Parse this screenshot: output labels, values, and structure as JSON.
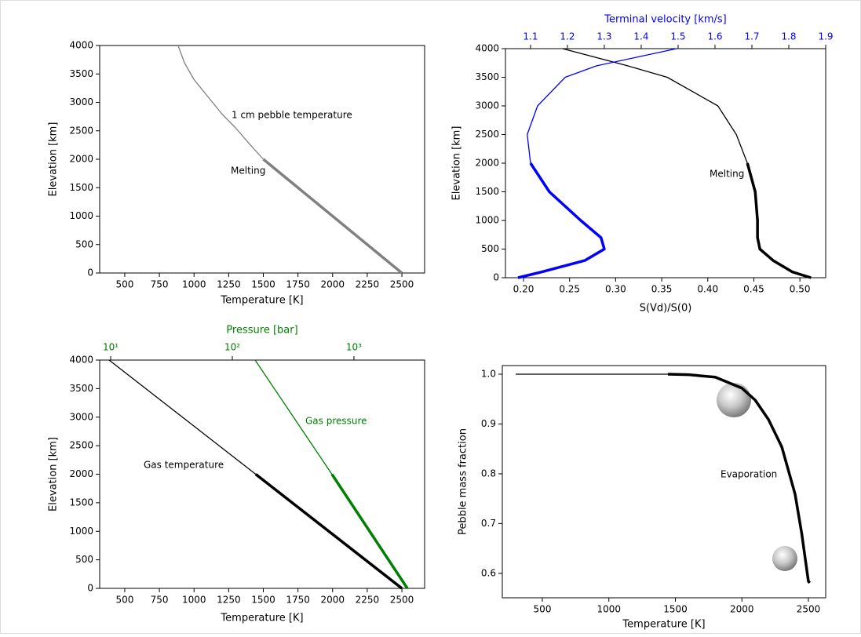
{
  "chart_data": [
    {
      "type": "line",
      "xlabel": "Temperature [K]",
      "ylabel": "Elevation [km]",
      "xlim": [
        319,
        2664
      ],
      "xticks": [
        500,
        750,
        1000,
        1250,
        1500,
        1750,
        2000,
        2250,
        2500
      ],
      "ylim": [
        0,
        4000
      ],
      "yticks": [
        0,
        500,
        1000,
        1500,
        2000,
        2500,
        3000,
        3500,
        4000
      ],
      "series": [
        {
          "color": "#808080",
          "linewidth": 1.3,
          "x": [
            885,
            930,
            1000,
            1100,
            1200,
            1300,
            1400,
            1500
          ],
          "y": [
            4000,
            3700,
            3400,
            3100,
            2800,
            2550,
            2270,
            2000
          ]
        },
        {
          "color": "#808080",
          "linewidth": 3.5,
          "x": [
            1500,
            2500
          ],
          "y": [
            2000,
            0
          ]
        }
      ],
      "annotations": [
        {
          "text": "1 cm pebble temperature",
          "color": "#000000"
        },
        {
          "text": "Melting",
          "color": "#000000"
        }
      ]
    },
    {
      "type": "line",
      "xlabel": "S(Vd)/S(0)",
      "ylabel": "Elevation [km]",
      "xlim": [
        0.1804,
        0.528
      ],
      "xticks": [
        {
          "value": 0.2,
          "label": "0.20"
        },
        0.25,
        {
          "value": 0.3,
          "label": "0.30"
        },
        0.35,
        {
          "value": 0.4,
          "label": "0.40"
        },
        0.45,
        {
          "value": 0.5,
          "label": "0.50"
        }
      ],
      "x2label": "Terminal velocity [km/s]",
      "x2color": "#0000ff",
      "x2lim": [
        1.032,
        1.9
      ],
      "x2ticks": [
        1.1,
        1.2,
        1.3,
        1.4,
        1.5,
        1.6,
        1.7,
        1.8,
        1.9
      ],
      "ylim": [
        0,
        4000
      ],
      "yticks": [
        0,
        500,
        1000,
        1500,
        2000,
        2500,
        3000,
        3500,
        4000
      ],
      "series": [
        {
          "color": "#000000",
          "linewidth": 1.3,
          "x": [
            0.2424,
            0.313,
            0.356,
            0.411,
            0.431,
            0.443
          ],
          "y": [
            4000,
            3700,
            3500,
            3000,
            2500,
            2000
          ]
        },
        {
          "color": "#000000",
          "linewidth": 3.5,
          "x": [
            0.443,
            0.4515,
            0.454,
            0.454,
            0.4566,
            0.471,
            0.492,
            0.512
          ],
          "y": [
            2000,
            1500,
            1000,
            700,
            500,
            300,
            100,
            0
          ]
        },
        {
          "color": "#0000ff",
          "linewidth": 1.3,
          "axis": "x2",
          "x": [
            1.496,
            1.279,
            1.194,
            1.119,
            1.091,
            1.1
          ],
          "y": [
            4000,
            3700,
            3500,
            3000,
            2500,
            2000
          ]
        },
        {
          "color": "#0000ff",
          "linewidth": 3.5,
          "axis": "x2",
          "x": [
            1.1,
            1.151,
            1.236,
            1.291,
            1.3,
            1.247,
            1.13,
            1.066
          ],
          "y": [
            2000,
            1500,
            1000,
            700,
            500,
            300,
            100,
            0
          ]
        }
      ],
      "annotations": [
        {
          "text": "Melting",
          "color": "#000000"
        }
      ]
    },
    {
      "type": "line",
      "xlabel": "Temperature [K]",
      "ylabel": "Elevation [km]",
      "xlim": [
        319,
        2664
      ],
      "xticks": [
        500,
        750,
        1000,
        1250,
        1500,
        1750,
        2000,
        2250,
        2500
      ],
      "x2label": "Pressure [bar]",
      "x2color": "#008000",
      "x2scale": "log",
      "x2lim": [
        8.12,
        3811
      ],
      "x2ticks": [
        {
          "value": 10,
          "label": "10¹"
        },
        {
          "value": 100,
          "label": "10²"
        },
        {
          "value": 1000,
          "label": "10³"
        }
      ],
      "ylim": [
        0,
        4000
      ],
      "yticks": [
        0,
        500,
        1000,
        1500,
        2000,
        2500,
        3000,
        3500,
        4000
      ],
      "series": [
        {
          "color": "#000000",
          "linewidth": 1.3,
          "x": [
            387,
            1445
          ],
          "y": [
            4000,
            2000
          ]
        },
        {
          "color": "#000000",
          "linewidth": 3.5,
          "x": [
            1445,
            2500
          ],
          "y": [
            2000,
            0
          ]
        },
        {
          "color": "#008000",
          "linewidth": 1.3,
          "axis": "x2",
          "x": [
            154,
            659
          ],
          "y": [
            4000,
            2000
          ]
        },
        {
          "color": "#008000",
          "linewidth": 3.5,
          "axis": "x2",
          "x": [
            659,
            2750
          ],
          "y": [
            2000,
            0
          ]
        }
      ],
      "annotations": [
        {
          "text": "Gas temperature",
          "color": "#000000"
        },
        {
          "text": "Gas pressure",
          "color": "#008000"
        }
      ]
    },
    {
      "type": "line",
      "xlabel": "Temperature [K]",
      "ylabel": "Pebble mass fraction",
      "xlim": [
        199,
        2630
      ],
      "xticks": [
        500,
        1000,
        1500,
        2000,
        2500
      ],
      "ylim": [
        0.551,
        1.0173
      ],
      "yticks": [
        0.6,
        0.7,
        0.8,
        0.9,
        {
          "value": 1,
          "label": "1.0"
        }
      ],
      "series": [
        {
          "color": "#000000",
          "linewidth": 1.3,
          "x": [
            299,
            1444
          ],
          "y": [
            1,
            1
          ]
        },
        {
          "color": "#000000",
          "linewidth": 3.5,
          "x": [
            1444,
            1600,
            1800,
            2000,
            2100,
            2200,
            2300,
            2400,
            2450,
            2500,
            2510
          ],
          "y": [
            1,
            0.999,
            0.994,
            0.972,
            0.948,
            0.909,
            0.854,
            0.759,
            0.68,
            0.584,
            0.581
          ]
        }
      ],
      "annotations": [
        {
          "text": "Evaporation",
          "color": "#000000"
        }
      ]
    }
  ]
}
